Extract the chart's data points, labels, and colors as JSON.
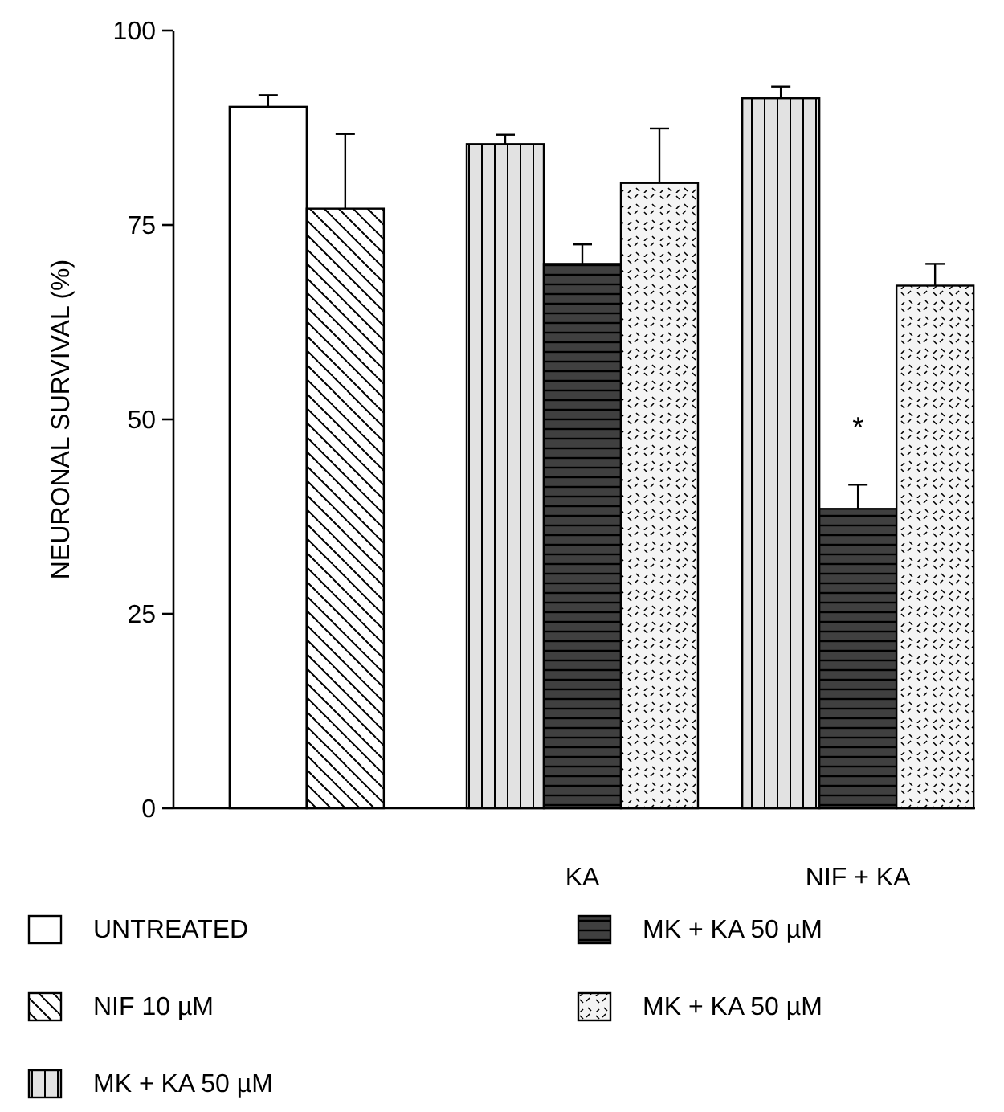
{
  "chart_data": {
    "type": "bar",
    "ylabel": "NEURONAL SURVIVAL (%)",
    "categories": [
      null,
      "KA",
      "NIF + KA"
    ],
    "series": [
      {
        "name": "UNTREATED",
        "color": "#ffffff",
        "values": [
          90.2,
          null,
          null
        ],
        "errors": [
          [
            90.2,
            91.7
          ],
          null,
          null
        ]
      },
      {
        "name": "NIF 10 µM",
        "color": "#ffffff",
        "values": [
          77.1,
          null,
          null
        ],
        "errors": [
          [
            77.1,
            86.7
          ],
          null,
          null
        ]
      },
      {
        "name": "MK + KA 50 µM",
        "color": "#e2e2e2",
        "values": [
          null,
          85.4,
          91.3
        ],
        "errors": [
          null,
          [
            85.4,
            86.6
          ],
          [
            91.3,
            92.8
          ]
        ]
      },
      {
        "name": "MK + KA 50 µM",
        "color": "#404040",
        "values": [
          null,
          70,
          38.5
        ],
        "errors": [
          null,
          [
            70,
            72.5
          ],
          [
            38.5,
            41.6
          ]
        ]
      },
      {
        "name": "MK + KA 50 µM",
        "color": "#f4f4f4",
        "values": [
          null,
          80.4,
          67.2
        ],
        "errors": [
          null,
          [
            80.4,
            87.4
          ],
          [
            67.2,
            70
          ]
        ]
      }
    ],
    "annotations": [
      "*"
    ],
    "ylim": [
      0,
      100
    ],
    "yticks": [
      0,
      25,
      50,
      75,
      100
    ],
    "legend": "bottom"
  }
}
